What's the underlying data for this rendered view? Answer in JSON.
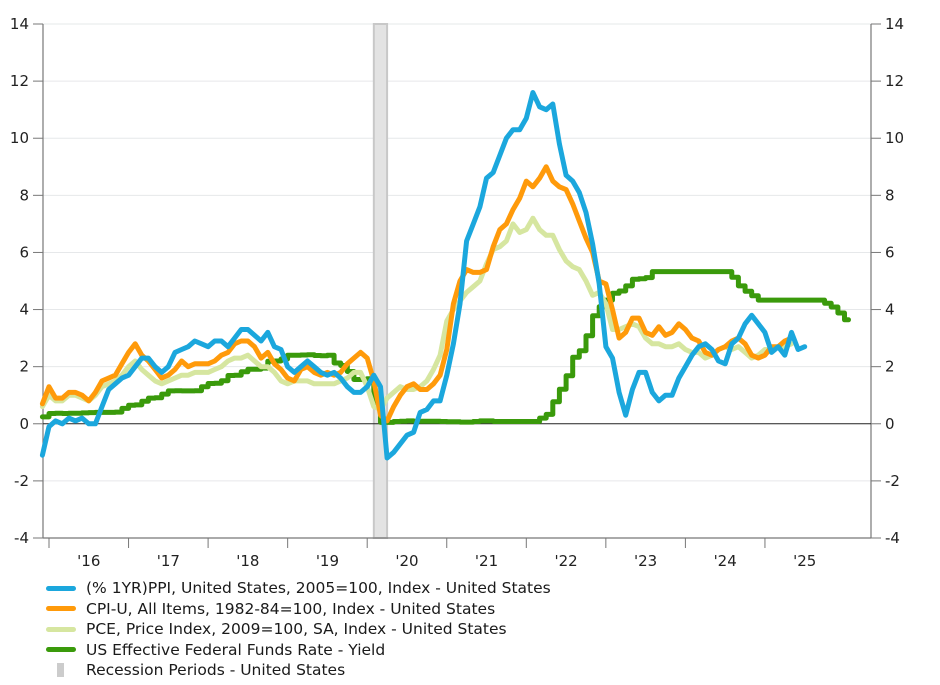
{
  "chart_data": {
    "type": "line",
    "title": "",
    "xlabel": "",
    "ylabel": "",
    "ylim": [
      -4,
      14
    ],
    "y_ticks": [
      -4,
      -2,
      0,
      2,
      4,
      6,
      8,
      10,
      12,
      14
    ],
    "y_tick_labels": [
      "-4",
      "-2",
      "0",
      "2",
      "4",
      "6",
      "8",
      "10",
      "12",
      "14"
    ],
    "y2_ticks": [
      -4,
      -2,
      0,
      2,
      4,
      6,
      8,
      10,
      12,
      14
    ],
    "y2_tick_labels": [
      "-4",
      "-2",
      "0",
      "2",
      "4",
      "6",
      "8",
      "10",
      "12",
      "14"
    ],
    "x_range": [
      "2015-12",
      "2026-03"
    ],
    "x_tick_years": [
      2016,
      2017,
      2018,
      2019,
      2020,
      2021,
      2022,
      2023,
      2024,
      2025
    ],
    "x_tick_labels": [
      "'16",
      "'17",
      "'18",
      "'19",
      "'20",
      "'21",
      "'22",
      "'23",
      "'24",
      "'25"
    ],
    "grid": true,
    "zero_line": true,
    "legend_position": "bottom-left",
    "recession": {
      "name": "Recession Periods - United States",
      "start": "2020-02",
      "end": "2020-04",
      "color": "#d9d9d9"
    },
    "series_start": "2015-12",
    "series": [
      {
        "name": "(% 1YR)PPI, United States, 2005=100, Index - United States",
        "color": "#1ba7dd",
        "values": [
          -1.1,
          -0.1,
          0.1,
          0.0,
          0.2,
          0.1,
          0.2,
          0.0,
          0.0,
          0.6,
          1.2,
          1.4,
          1.6,
          1.7,
          2.0,
          2.3,
          2.3,
          2.0,
          1.8,
          2.0,
          2.5,
          2.6,
          2.7,
          2.9,
          2.8,
          2.7,
          2.9,
          2.9,
          2.7,
          3.0,
          3.3,
          3.3,
          3.1,
          2.9,
          3.2,
          2.7,
          2.6,
          2.0,
          1.8,
          2.0,
          2.2,
          2.0,
          1.8,
          1.7,
          1.8,
          1.6,
          1.3,
          1.1,
          1.1,
          1.3,
          1.7,
          1.3,
          -1.2,
          -1.0,
          -0.7,
          -0.4,
          -0.3,
          0.4,
          0.5,
          0.8,
          0.8,
          1.7,
          2.8,
          4.2,
          6.4,
          7.0,
          7.6,
          8.6,
          8.8,
          9.4,
          10.0,
          10.3,
          10.3,
          10.7,
          11.6,
          11.1,
          11.0,
          11.2,
          9.8,
          8.7,
          8.5,
          8.1,
          7.4,
          6.3,
          4.9,
          2.7,
          2.3,
          1.1,
          0.3,
          1.2,
          1.8,
          1.8,
          1.1,
          0.8,
          1.0,
          1.0,
          1.6,
          2.0,
          2.4,
          2.7,
          2.8,
          2.6,
          2.2,
          2.1,
          2.8,
          3.0,
          3.5,
          3.8,
          3.5,
          3.2,
          2.5,
          2.7,
          2.4,
          3.2,
          2.6,
          2.7
        ]
      },
      {
        "name": "CPI-U, All Items, 1982-84=100, Index - United States",
        "color": "#ff9a0a",
        "values": [
          0.7,
          1.3,
          0.9,
          0.9,
          1.1,
          1.1,
          1.0,
          0.8,
          1.1,
          1.5,
          1.6,
          1.7,
          2.1,
          2.5,
          2.8,
          2.4,
          2.2,
          1.9,
          1.6,
          1.7,
          1.9,
          2.2,
          2.0,
          2.1,
          2.1,
          2.1,
          2.2,
          2.4,
          2.5,
          2.8,
          2.9,
          2.9,
          2.7,
          2.3,
          2.5,
          2.1,
          1.9,
          1.6,
          1.5,
          1.9,
          2.0,
          1.8,
          1.7,
          1.8,
          1.7,
          1.8,
          2.1,
          2.3,
          2.5,
          2.3,
          1.5,
          0.3,
          0.1,
          0.6,
          1.0,
          1.3,
          1.4,
          1.2,
          1.2,
          1.4,
          1.7,
          2.6,
          4.2,
          5.0,
          5.4,
          5.3,
          5.3,
          5.4,
          6.2,
          6.8,
          7.0,
          7.5,
          7.9,
          8.5,
          8.3,
          8.6,
          9.0,
          8.5,
          8.3,
          8.2,
          7.7,
          7.1,
          6.5,
          6.0,
          5.0,
          4.9,
          4.0,
          3.0,
          3.2,
          3.7,
          3.7,
          3.2,
          3.1,
          3.4,
          3.1,
          3.2,
          3.5,
          3.3,
          3.0,
          2.9,
          2.5,
          2.4,
          2.6,
          2.7,
          2.9,
          3.0,
          2.8,
          2.4,
          2.3,
          2.4,
          2.7,
          2.7,
          2.9,
          3.0
        ]
      },
      {
        "name": "PCE, Price Index, 2009=100, SA, Index - United States",
        "color": "#d6e6a0",
        "values": [
          0.6,
          1.0,
          0.8,
          0.8,
          1.0,
          1.0,
          0.9,
          0.8,
          1.0,
          1.3,
          1.4,
          1.5,
          1.7,
          2.0,
          2.2,
          1.9,
          1.7,
          1.5,
          1.4,
          1.5,
          1.6,
          1.7,
          1.7,
          1.8,
          1.8,
          1.8,
          1.9,
          2.0,
          2.2,
          2.3,
          2.3,
          2.4,
          2.2,
          2.0,
          2.0,
          1.8,
          1.5,
          1.4,
          1.5,
          1.5,
          1.5,
          1.4,
          1.4,
          1.4,
          1.4,
          1.5,
          1.6,
          1.8,
          1.8,
          1.3,
          0.6,
          0.5,
          0.9,
          1.1,
          1.3,
          1.2,
          1.2,
          1.3,
          1.5,
          1.9,
          2.4,
          3.6,
          4.0,
          4.3,
          4.6,
          4.8,
          5.0,
          5.6,
          6.1,
          6.2,
          6.4,
          7.0,
          6.7,
          6.8,
          7.2,
          6.8,
          6.6,
          6.6,
          6.1,
          5.7,
          5.5,
          5.4,
          5.0,
          4.5,
          4.6,
          4.2,
          3.3,
          3.3,
          3.4,
          3.5,
          3.4,
          3.0,
          2.8,
          2.8,
          2.7,
          2.7,
          2.8,
          2.6,
          2.5,
          2.5,
          2.3,
          2.4,
          2.6,
          2.7,
          2.6,
          2.7,
          2.5,
          2.3,
          2.4,
          2.6,
          2.6,
          2.7,
          2.7,
          2.8
        ]
      },
      {
        "name": "US Effective Federal Funds Rate - Yield",
        "color": "#3a9a0b",
        "step": true,
        "values": [
          0.24,
          0.36,
          0.37,
          0.36,
          0.37,
          0.37,
          0.38,
          0.39,
          0.4,
          0.4,
          0.4,
          0.41,
          0.54,
          0.65,
          0.66,
          0.79,
          0.9,
          0.91,
          1.04,
          1.15,
          1.16,
          1.15,
          1.15,
          1.16,
          1.3,
          1.41,
          1.42,
          1.51,
          1.69,
          1.7,
          1.82,
          1.91,
          1.91,
          1.95,
          2.19,
          2.2,
          2.27,
          2.4,
          2.4,
          2.41,
          2.42,
          2.39,
          2.38,
          2.4,
          2.13,
          2.04,
          1.83,
          1.55,
          1.55,
          1.58,
          0.65,
          0.05,
          0.05,
          0.08,
          0.09,
          0.1,
          0.09,
          0.09,
          0.09,
          0.09,
          0.08,
          0.07,
          0.07,
          0.06,
          0.06,
          0.08,
          0.1,
          0.1,
          0.08,
          0.08,
          0.08,
          0.08,
          0.08,
          0.08,
          0.08,
          0.2,
          0.33,
          0.77,
          1.21,
          1.68,
          2.33,
          2.56,
          3.08,
          3.78,
          4.1,
          4.33,
          4.57,
          4.65,
          4.83,
          5.06,
          5.08,
          5.12,
          5.33,
          5.33,
          5.33,
          5.33,
          5.33,
          5.33,
          5.33,
          5.33,
          5.33,
          5.33,
          5.33,
          5.33,
          5.13,
          4.83,
          4.64,
          4.48,
          4.33,
          4.33,
          4.33,
          4.33,
          4.33,
          4.33,
          4.33,
          4.33,
          4.33,
          4.33,
          4.22,
          4.09,
          3.88,
          3.64
        ]
      }
    ]
  },
  "legend": {
    "items": [
      {
        "label": "(% 1YR)PPI, United States, 2005=100, Index - United States",
        "color": "#1ba7dd",
        "kind": "line"
      },
      {
        "label": "CPI-U, All Items, 1982-84=100, Index - United States",
        "color": "#ff9a0a",
        "kind": "line"
      },
      {
        "label": "PCE, Price Index, 2009=100, SA, Index - United States",
        "color": "#d6e6a0",
        "kind": "line"
      },
      {
        "label": "US Effective Federal Funds Rate - Yield",
        "color": "#3a9a0b",
        "kind": "line"
      },
      {
        "label": "Recession Periods - United States",
        "color": "#cccccc",
        "kind": "bar"
      }
    ]
  }
}
